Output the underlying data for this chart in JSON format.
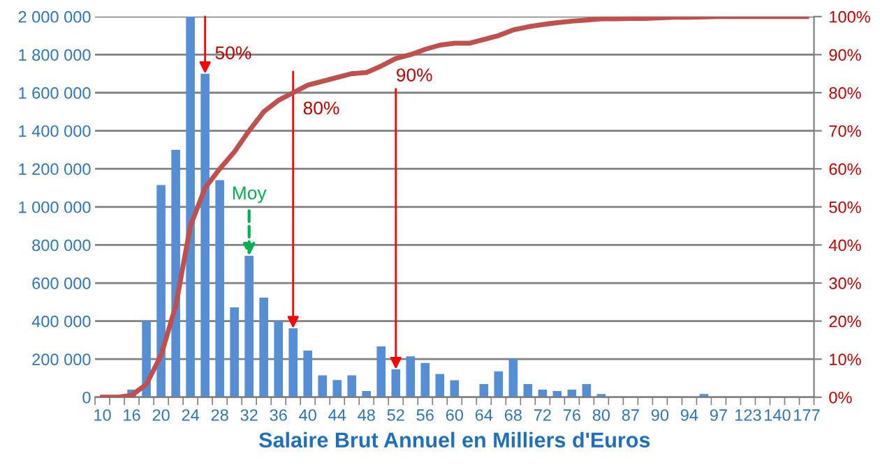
{
  "chart_data": {
    "type": "bar",
    "xlabel": "Salaire Brut Annuel en Milliers d'Euros",
    "categories": [
      "10",
      null,
      "16",
      null,
      "20",
      null,
      "24",
      null,
      "28",
      null,
      "32",
      null,
      "36",
      null,
      "40",
      null,
      "44",
      null,
      "48",
      null,
      "52",
      null,
      "56",
      null,
      "60",
      null,
      "64",
      null,
      "68",
      null,
      "72",
      null,
      "76",
      null,
      "80",
      null,
      "87",
      null,
      "90",
      null,
      "94",
      null,
      "97",
      null,
      "123",
      null,
      "140",
      null,
      "177"
    ],
    "series": [
      {
        "axis": "y",
        "color": "#558ed5",
        "values": [
          0,
          0,
          40000,
          400000,
          1115000,
          1300000,
          2000000,
          1700000,
          1140000,
          472000,
          743000,
          523000,
          400000,
          362000,
          245000,
          115000,
          90000,
          115000,
          32000,
          267000,
          147000,
          215000,
          180000,
          122000,
          89000,
          0,
          69000,
          136000,
          200000,
          69000,
          40000,
          32000,
          40000,
          69000,
          17000,
          0,
          0,
          0,
          0,
          0,
          0,
          17000,
          0,
          0,
          0,
          0,
          0,
          0,
          0
        ]
      },
      {
        "type": "line",
        "axis": "y2",
        "color": "#c0504d",
        "marker": "none",
        "line_style": "solid",
        "values": [
          0,
          0,
          0.5,
          3.4,
          11,
          24,
          45,
          55,
          60,
          64.5,
          70,
          75,
          78,
          80,
          82,
          83,
          84,
          85,
          85.3,
          87,
          89,
          90,
          91.4,
          92.5,
          93,
          93,
          94,
          95,
          96.5,
          97.3,
          97.9,
          98.4,
          98.8,
          99.1,
          99.4,
          99.4,
          99.5,
          99.5,
          99.7,
          99.8,
          99.8,
          99.9,
          100,
          100,
          100,
          100,
          100,
          100,
          100
        ]
      }
    ],
    "ylim": [
      0,
      2000000
    ],
    "yticks": [
      {
        "value": 0,
        "label": "0"
      },
      {
        "value": 200000,
        "label": "200 000"
      },
      {
        "value": 400000,
        "label": "400 000"
      },
      {
        "value": 600000,
        "label": "600 000"
      },
      {
        "value": 800000,
        "label": "800 000"
      },
      {
        "value": 1000000,
        "label": "1 000 000"
      },
      {
        "value": 1200000,
        "label": "1 200 000"
      },
      {
        "value": 1400000,
        "label": "1 400 000"
      },
      {
        "value": 1600000,
        "label": "1 600 000"
      },
      {
        "value": 1800000,
        "label": "1 800 000"
      },
      {
        "value": 2000000,
        "label": "2 000 000"
      }
    ],
    "y2lim": [
      0,
      100
    ],
    "y2ticks": [
      {
        "value": 0,
        "label": "0%"
      },
      {
        "value": 10,
        "label": "10%"
      },
      {
        "value": 20,
        "label": "20%"
      },
      {
        "value": 30,
        "label": "30%"
      },
      {
        "value": 40,
        "label": "40%"
      },
      {
        "value": 50,
        "label": "50%"
      },
      {
        "value": 60,
        "label": "60%"
      },
      {
        "value": 70,
        "label": "70%"
      },
      {
        "value": 80,
        "label": "80%"
      },
      {
        "value": 90,
        "label": "90%"
      },
      {
        "value": 100,
        "label": "100%"
      }
    ],
    "grid": "y",
    "legend": false,
    "annotations": [
      "50%",
      "80%",
      {
        "text": "90%",
        "x": "52",
        "y": 147000
      },
      {
        "text": "Moy",
        "x": "32",
        "y": 743000
      }
    ]
  }
}
